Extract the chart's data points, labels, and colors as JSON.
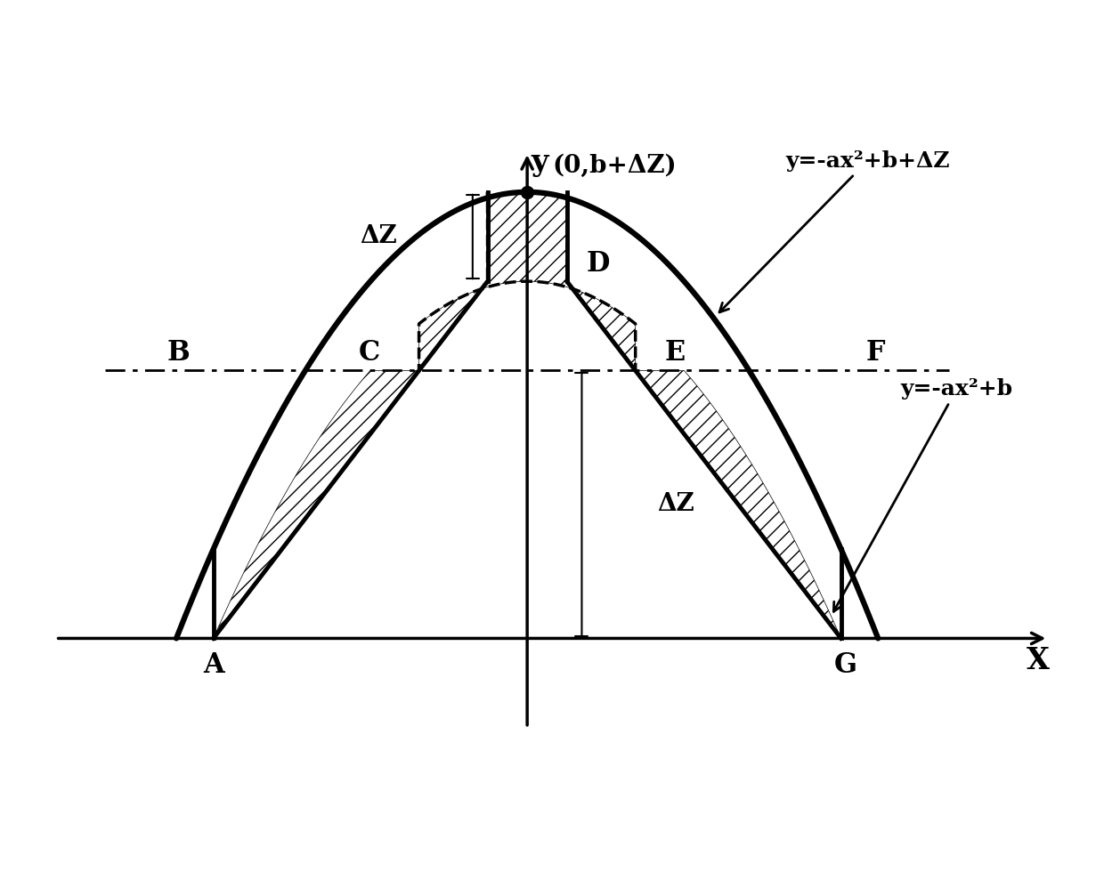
{
  "background_color": "#ffffff",
  "a_coef": 1.8,
  "b_coef": 0.72,
  "dz": 0.18,
  "xlabel": "X",
  "ylabel": "y",
  "eq1_text": "y=-ax²+b+ΔZ",
  "eq2_text": "y=-ax²+b",
  "vertex_label": "(0,b+ΔZ)",
  "dz_label": "ΔZ",
  "label_fontsize": 20,
  "eq_fontsize": 18
}
